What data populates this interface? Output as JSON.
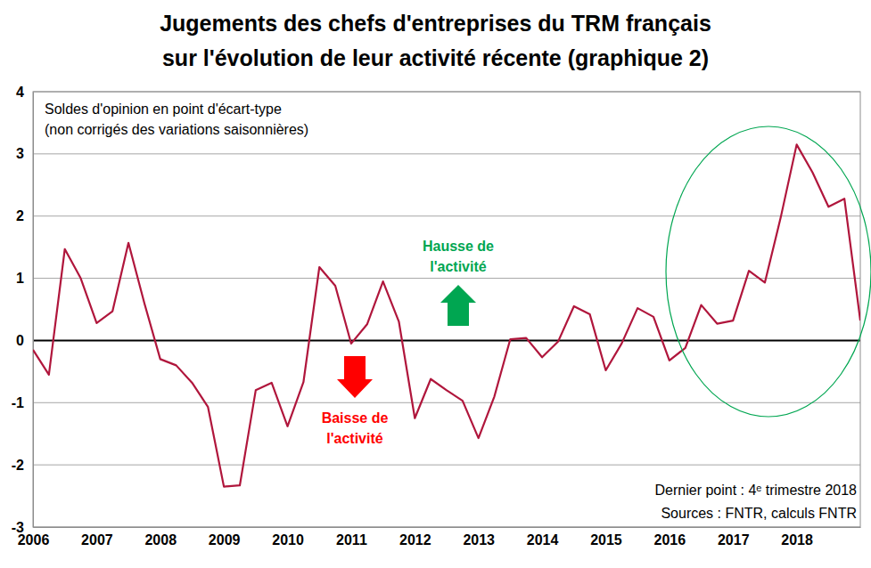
{
  "chart_data": {
    "type": "line",
    "title": [
      "Jugements des chefs d'entreprises du TRM français",
      "sur l'évolution de leur activité récente (graphique 2)"
    ],
    "categories": [
      "2006",
      null,
      null,
      null,
      "2007",
      null,
      null,
      null,
      "2008",
      null,
      null,
      null,
      "2009",
      null,
      null,
      null,
      "2010",
      null,
      null,
      null,
      "2011",
      null,
      null,
      null,
      "2012",
      null,
      null,
      null,
      "2013",
      null,
      null,
      null,
      "2014",
      null,
      null,
      null,
      "2015",
      null,
      null,
      null,
      "2016",
      null,
      null,
      null,
      "2017",
      null,
      null,
      null,
      "2018",
      null,
      null,
      null,
      null
    ],
    "values": [
      -0.15,
      -0.55,
      1.47,
      1.0,
      0.28,
      0.47,
      1.57,
      0.6,
      -0.3,
      -0.4,
      -0.68,
      -1.07,
      -2.35,
      -2.33,
      -0.8,
      -0.68,
      -1.38,
      -0.67,
      1.18,
      0.88,
      -0.05,
      0.26,
      0.95,
      0.3,
      -1.25,
      -0.62,
      -0.8,
      -0.97,
      -1.57,
      -0.9,
      0.02,
      0.04,
      -0.27,
      -0.02,
      0.55,
      0.42,
      -0.48,
      -0.05,
      0.52,
      0.38,
      -0.32,
      -0.12,
      0.57,
      0.27,
      0.32,
      1.12,
      0.93,
      1.98,
      3.15,
      2.7,
      2.15,
      2.28,
      0.32
    ],
    "color": "#b0163c",
    "ylim": [
      -3,
      4
    ],
    "yticks": [
      -3,
      -2,
      -1,
      0,
      1,
      2,
      3,
      4
    ],
    "grid": true,
    "annotations": {
      "notes": [
        "Soldes d'opinion en point d'écart-type",
        "(non corrigés des variations saisonnières)"
      ],
      "up": [
        "Hausse de",
        "l'activité"
      ],
      "down": [
        "Baisse de",
        "l'activité"
      ],
      "last_point": "Dernier point : 4ᵉ trimestre 2018",
      "source": "Sources : FNTR, calculs FNTR"
    }
  }
}
